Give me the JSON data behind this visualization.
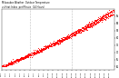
{
  "title": "Milwaukee Weather  Outdoor Temperature\nvs Heat Index  per Minute  (24 Hours)",
  "bg_color": "#ffffff",
  "dot_color": "#ff0000",
  "legend_blue": "#0000cc",
  "legend_red": "#ff0000",
  "y_min": 58,
  "y_max": 100,
  "y_ticks": [
    60,
    65,
    70,
    75,
    80,
    85,
    90,
    95
  ],
  "vlines_x": [
    360,
    900
  ],
  "n_points": 1440,
  "seed": 7
}
